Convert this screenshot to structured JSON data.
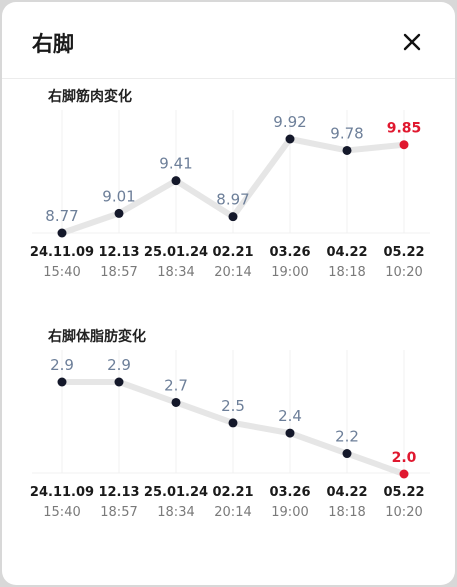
{
  "dialog": {
    "title": "右脚",
    "close_icon": "close-icon"
  },
  "colors": {
    "point": "#14182a",
    "line": "#e6e6e6",
    "label": "#6d7f99",
    "highlight": "#e0182f",
    "axis_text": "#1a1a1a",
    "time_text": "#7a7a7a"
  },
  "charts": [
    {
      "title": "右脚筋肉変化",
      "chart_data": {
        "type": "line",
        "categories": [
          {
            "date": "24.11.09",
            "time": "15:40"
          },
          {
            "date": "12.13",
            "time": "18:57"
          },
          {
            "date": "25.01.24",
            "time": "18:34"
          },
          {
            "date": "02.21",
            "time": "20:14"
          },
          {
            "date": "03.26",
            "time": "19:00"
          },
          {
            "date": "04.22",
            "time": "18:18"
          },
          {
            "date": "05.22",
            "time": "10:20"
          }
        ],
        "values": [
          8.77,
          9.01,
          9.41,
          8.97,
          9.92,
          9.78,
          9.85
        ],
        "labels": [
          "8.77",
          "9.01",
          "9.41",
          "8.97",
          "9.92",
          "9.78",
          "9.85"
        ],
        "highlight_index": 6
      }
    },
    {
      "title": "右脚体脂肪変化",
      "chart_data": {
        "type": "line",
        "categories": [
          {
            "date": "24.11.09",
            "time": "15:40"
          },
          {
            "date": "12.13",
            "time": "18:57"
          },
          {
            "date": "25.01.24",
            "time": "18:34"
          },
          {
            "date": "02.21",
            "time": "20:14"
          },
          {
            "date": "03.26",
            "time": "19:00"
          },
          {
            "date": "04.22",
            "time": "18:18"
          },
          {
            "date": "05.22",
            "time": "10:20"
          }
        ],
        "values": [
          2.9,
          2.9,
          2.7,
          2.5,
          2.4,
          2.2,
          2.0
        ],
        "labels": [
          "2.9",
          "2.9",
          "2.7",
          "2.5",
          "2.4",
          "2.2",
          "2.0"
        ],
        "highlight_index": 6
      }
    }
  ]
}
